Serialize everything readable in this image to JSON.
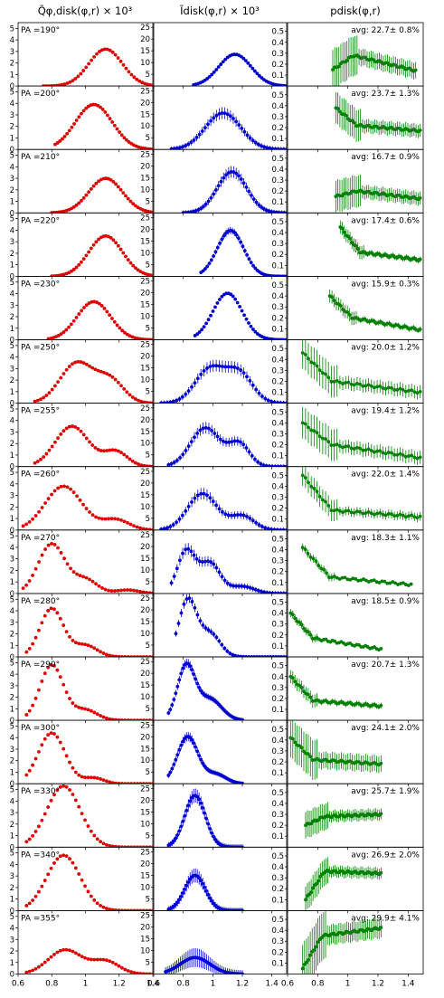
{
  "figure": {
    "columns": [
      {
        "id": "q",
        "title": "Q̃φ,disk(φ,r) × 10³",
        "color": "#e00000",
        "ylim": [
          0,
          5.5
        ],
        "yticks": [
          0,
          1,
          2,
          3,
          4,
          5
        ],
        "ytick_labels": [
          "0",
          "1",
          "2",
          "3",
          "4",
          "5"
        ],
        "xlim": [
          0.6,
          1.4
        ],
        "xticks": [
          0.6,
          0.8,
          1.0,
          1.2,
          1.4
        ],
        "xtick_labels": [
          "0.6",
          "0.8",
          "1",
          "1.2",
          "1.4"
        ]
      },
      {
        "id": "i",
        "title": "Ĩdisk(φ,r) × 10³",
        "color": "#0000d0",
        "ylim": [
          0,
          27
        ],
        "yticks": [
          5,
          10,
          15,
          20,
          25
        ],
        "ytick_labels": [
          "5",
          "10",
          "15",
          "20",
          "25"
        ],
        "xlim": [
          0.6,
          1.5
        ],
        "xticks": [
          0.6,
          0.8,
          1.0,
          1.2,
          1.4
        ],
        "xtick_labels": [
          "0.6",
          "0.8",
          "1",
          "1.2",
          "1.4"
        ]
      },
      {
        "id": "p",
        "title": "pdisk(φ,r)",
        "color": "#008000",
        "ylim": [
          0,
          0.58
        ],
        "yticks": [
          0.1,
          0.2,
          0.3,
          0.4,
          0.5
        ],
        "ytick_labels": [
          "0.1",
          "0.2",
          "0.3",
          "0.4",
          "0.5"
        ],
        "xlim": [
          0.6,
          1.5
        ],
        "xticks": [
          0.6,
          0.8,
          1.0,
          1.2,
          1.4
        ],
        "xtick_labels": [
          "0.6",
          "0.8",
          "1",
          "1.2",
          "1.4"
        ]
      }
    ],
    "rows": [
      {
        "pa": "PA =190°",
        "avg": "avg: 22.7± 0.8%"
      },
      {
        "pa": "PA =200°",
        "avg": "avg: 23.7± 1.3%"
      },
      {
        "pa": "PA =210°",
        "avg": "avg: 16.7± 0.9%"
      },
      {
        "pa": "PA =220°",
        "avg": "avg: 17.4± 0.6%"
      },
      {
        "pa": "PA =230°",
        "avg": "avg: 15.9± 0.3%"
      },
      {
        "pa": "PA =250°",
        "avg": "avg: 20.0± 1.2%"
      },
      {
        "pa": "PA =255°",
        "avg": "avg: 19.4± 1.2%"
      },
      {
        "pa": "PA =260°",
        "avg": "avg: 22.0± 1.4%"
      },
      {
        "pa": "PA =270°",
        "avg": "avg: 18.3± 1.1%"
      },
      {
        "pa": "PA =280°",
        "avg": "avg: 18.5± 0.9%"
      },
      {
        "pa": "PA =290°",
        "avg": "avg: 20.7± 1.3%"
      },
      {
        "pa": "PA =300°",
        "avg": "avg: 24.1± 2.0%"
      },
      {
        "pa": "PA =330°",
        "avg": "avg: 25.7± 1.9%"
      },
      {
        "pa": "PA =340°",
        "avg": "avg: 26.9± 2.0%"
      },
      {
        "pa": "PA =355°",
        "avg": "avg: 29.9± 4.1%"
      }
    ]
  },
  "chart_data": [
    {
      "type": "scatter",
      "panel": "Q-190",
      "x_range": [
        0.75,
        1.4
      ],
      "peaks": [
        {
          "x": 1.12,
          "y": 3.2,
          "w": 0.1
        }
      ]
    },
    {
      "type": "scatter",
      "panel": "Q-200",
      "x_range": [
        0.82,
        1.4
      ],
      "peaks": [
        {
          "x": 1.05,
          "y": 3.9,
          "w": 0.11
        }
      ]
    },
    {
      "type": "scatter",
      "panel": "Q-210",
      "x_range": [
        0.8,
        1.4
      ],
      "peaks": [
        {
          "x": 1.12,
          "y": 3.0,
          "w": 0.1
        }
      ]
    },
    {
      "type": "scatter",
      "panel": "Q-220",
      "x_range": [
        0.8,
        1.4
      ],
      "peaks": [
        {
          "x": 1.12,
          "y": 3.5,
          "w": 0.1
        }
      ]
    },
    {
      "type": "scatter",
      "panel": "Q-230",
      "x_range": [
        0.78,
        1.4
      ],
      "peaks": [
        {
          "x": 1.05,
          "y": 3.3,
          "w": 0.1
        }
      ]
    },
    {
      "type": "scatter",
      "panel": "Q-250",
      "x_range": [
        0.7,
        1.4
      ],
      "peaks": [
        {
          "x": 0.95,
          "y": 3.5,
          "w": 0.1
        },
        {
          "x": 1.15,
          "y": 1.9,
          "w": 0.08
        }
      ]
    },
    {
      "type": "scatter",
      "panel": "Q-255",
      "x_range": [
        0.7,
        1.4
      ],
      "peaks": [
        {
          "x": 0.92,
          "y": 3.5,
          "w": 0.1
        },
        {
          "x": 1.18,
          "y": 1.3,
          "w": 0.07
        }
      ]
    },
    {
      "type": "scatter",
      "panel": "Q-260",
      "x_range": [
        0.63,
        1.4
      ],
      "peaks": [
        {
          "x": 0.87,
          "y": 3.8,
          "w": 0.11
        },
        {
          "x": 1.18,
          "y": 0.9,
          "w": 0.08
        }
      ]
    },
    {
      "type": "scatter",
      "panel": "Q-270",
      "x_range": [
        0.63,
        1.4
      ],
      "peaks": [
        {
          "x": 0.8,
          "y": 4.3,
          "w": 0.08
        },
        {
          "x": 1.0,
          "y": 1.2,
          "w": 0.07
        },
        {
          "x": 1.25,
          "y": 0.3,
          "w": 0.07
        }
      ]
    },
    {
      "type": "scatter",
      "panel": "Q-280",
      "x_range": [
        0.65,
        1.4
      ],
      "peaks": [
        {
          "x": 0.8,
          "y": 4.2,
          "w": 0.07
        },
        {
          "x": 1.0,
          "y": 1.0,
          "w": 0.07
        }
      ]
    },
    {
      "type": "scatter",
      "panel": "Q-290",
      "x_range": [
        0.65,
        1.4
      ],
      "peaks": [
        {
          "x": 0.8,
          "y": 4.8,
          "w": 0.07
        },
        {
          "x": 1.0,
          "y": 0.9,
          "w": 0.07
        }
      ]
    },
    {
      "type": "scatter",
      "panel": "Q-300",
      "x_range": [
        0.65,
        1.4
      ],
      "peaks": [
        {
          "x": 0.8,
          "y": 4.4,
          "w": 0.08
        },
        {
          "x": 1.05,
          "y": 0.5,
          "w": 0.06
        }
      ]
    },
    {
      "type": "scatter",
      "panel": "Q-330",
      "x_range": [
        0.65,
        1.4
      ],
      "peaks": [
        {
          "x": 0.87,
          "y": 5.3,
          "w": 0.1
        }
      ]
    },
    {
      "type": "scatter",
      "panel": "Q-340",
      "x_range": [
        0.65,
        1.4
      ],
      "peaks": [
        {
          "x": 0.87,
          "y": 4.8,
          "w": 0.1
        }
      ]
    },
    {
      "type": "scatter",
      "panel": "Q-355",
      "x_range": [
        0.65,
        1.4
      ],
      "peaks": [
        {
          "x": 0.88,
          "y": 2.1,
          "w": 0.1
        },
        {
          "x": 1.12,
          "y": 1.1,
          "w": 0.08
        }
      ]
    },
    {
      "type": "scatter",
      "panel": "I-190",
      "x_range": [
        0.87,
        1.5
      ],
      "peaks": [
        {
          "x": 1.15,
          "y": 13.5,
          "w": 0.11
        }
      ],
      "err": 0.3
    },
    {
      "type": "scatter",
      "panel": "I-200",
      "x_range": [
        0.72,
        1.5
      ],
      "peaks": [
        {
          "x": 1.07,
          "y": 15.5,
          "w": 0.12
        }
      ],
      "err": 2.5
    },
    {
      "type": "scatter",
      "panel": "I-210",
      "x_range": [
        0.8,
        1.5
      ],
      "peaks": [
        {
          "x": 1.13,
          "y": 17.5,
          "w": 0.1
        }
      ],
      "err": 2.5
    },
    {
      "type": "scatter",
      "panel": "I-220",
      "x_range": [
        0.92,
        1.5
      ],
      "peaks": [
        {
          "x": 1.12,
          "y": 19.5,
          "w": 0.09
        }
      ],
      "err": 1.5
    },
    {
      "type": "scatter",
      "panel": "I-230",
      "x_range": [
        0.88,
        1.5
      ],
      "peaks": [
        {
          "x": 1.1,
          "y": 19.8,
          "w": 0.1
        }
      ],
      "err": 0.3
    },
    {
      "type": "scatter",
      "panel": "I-250",
      "x_range": [
        0.65,
        1.5
      ],
      "peaks": [
        {
          "x": 0.98,
          "y": 14.5,
          "w": 0.1
        },
        {
          "x": 1.18,
          "y": 12.5,
          "w": 0.09
        }
      ],
      "err": 2.5
    },
    {
      "type": "scatter",
      "panel": "I-255",
      "x_range": [
        0.7,
        1.5
      ],
      "peaks": [
        {
          "x": 0.95,
          "y": 16.5,
          "w": 0.1
        },
        {
          "x": 1.18,
          "y": 9.5,
          "w": 0.07
        }
      ],
      "err": 2.5
    },
    {
      "type": "scatter",
      "panel": "I-260",
      "x_range": [
        0.65,
        1.5
      ],
      "peaks": [
        {
          "x": 0.93,
          "y": 15.5,
          "w": 0.1
        },
        {
          "x": 1.2,
          "y": 6,
          "w": 0.08
        }
      ],
      "err": 2.5
    },
    {
      "type": "scatter",
      "panel": "I-270",
      "x_range": [
        0.72,
        1.5
      ],
      "peaks": [
        {
          "x": 0.82,
          "y": 18,
          "w": 0.06
        },
        {
          "x": 0.98,
          "y": 13,
          "w": 0.07
        },
        {
          "x": 1.2,
          "y": 3,
          "w": 0.08
        }
      ],
      "err": 2.5
    },
    {
      "type": "scatter",
      "panel": "I-280",
      "x_range": [
        0.75,
        1.5
      ],
      "peaks": [
        {
          "x": 0.83,
          "y": 24,
          "w": 0.06
        },
        {
          "x": 0.98,
          "y": 10,
          "w": 0.07
        }
      ],
      "err": 2
    },
    {
      "type": "scatter",
      "panel": "I-290",
      "x_range": [
        0.7,
        1.2
      ],
      "peaks": [
        {
          "x": 0.82,
          "y": 23,
          "w": 0.06
        },
        {
          "x": 0.98,
          "y": 9,
          "w": 0.08
        }
      ],
      "err": 2
    },
    {
      "type": "scatter",
      "panel": "I-300",
      "x_range": [
        0.7,
        1.2
      ],
      "peaks": [
        {
          "x": 0.83,
          "y": 20,
          "w": 0.07
        },
        {
          "x": 1.02,
          "y": 4,
          "w": 0.07
        }
      ],
      "err": 2
    },
    {
      "type": "scatter",
      "panel": "I-330",
      "x_range": [
        0.7,
        1.2
      ],
      "peaks": [
        {
          "x": 0.88,
          "y": 22,
          "w": 0.07
        }
      ],
      "err": 3
    },
    {
      "type": "scatter",
      "panel": "I-340",
      "x_range": [
        0.7,
        1.2
      ],
      "peaks": [
        {
          "x": 0.88,
          "y": 15,
          "w": 0.07
        }
      ],
      "err": 3
    },
    {
      "type": "scatter",
      "panel": "I-355",
      "x_range": [
        0.68,
        1.2
      ],
      "peaks": [
        {
          "x": 0.88,
          "y": 7,
          "w": 0.1
        }
      ],
      "err": 4
    },
    {
      "type": "scatter",
      "panel": "p-190",
      "x_range": [
        0.9,
        1.45
      ],
      "y_start": 0.15,
      "y_mid": 0.28,
      "y_end": 0.14,
      "err": 0.15
    },
    {
      "type": "scatter",
      "panel": "p-200",
      "x_range": [
        0.92,
        1.48
      ],
      "y_start": 0.38,
      "y_mid": 0.22,
      "y_end": 0.17,
      "err": 0.12
    },
    {
      "type": "scatter",
      "panel": "p-210",
      "x_range": [
        0.92,
        1.48
      ],
      "y_start": 0.15,
      "y_mid": 0.2,
      "y_end": 0.13,
      "err": 0.12
    },
    {
      "type": "scatter",
      "panel": "p-220",
      "x_range": [
        0.95,
        1.48
      ],
      "y_start": 0.45,
      "y_mid": 0.22,
      "y_end": 0.15,
      "err": 0.05
    },
    {
      "type": "scatter",
      "panel": "p-230",
      "x_range": [
        0.88,
        1.48
      ],
      "y_start": 0.4,
      "y_mid": 0.2,
      "y_end": 0.09,
      "err": 0.05
    },
    {
      "type": "scatter",
      "panel": "p-250",
      "x_range": [
        0.7,
        1.48
      ],
      "y_start": 0.46,
      "y_mid": 0.2,
      "y_end": 0.1,
      "err": 0.12
    },
    {
      "type": "scatter",
      "panel": "p-255",
      "x_range": [
        0.7,
        1.48
      ],
      "y_start": 0.4,
      "y_mid": 0.2,
      "y_end": 0.08,
      "err": 0.12
    },
    {
      "type": "scatter",
      "panel": "p-260",
      "x_range": [
        0.7,
        1.48
      ],
      "y_start": 0.5,
      "y_mid": 0.18,
      "y_end": 0.12,
      "err": 0.08
    },
    {
      "type": "scatter",
      "panel": "p-270",
      "x_range": [
        0.7,
        1.42
      ],
      "y_start": 0.42,
      "y_mid": 0.15,
      "y_end": 0.08,
      "err": 0.03
    },
    {
      "type": "scatter",
      "panel": "p-280",
      "x_range": [
        0.62,
        1.22
      ],
      "y_start": 0.4,
      "y_mid": 0.17,
      "y_end": 0.07,
      "err": 0.03
    },
    {
      "type": "scatter",
      "panel": "p-290",
      "x_range": [
        0.62,
        1.22
      ],
      "y_start": 0.4,
      "y_mid": 0.18,
      "y_end": 0.13,
      "err": 0.05
    },
    {
      "type": "scatter",
      "panel": "p-300",
      "x_range": [
        0.62,
        1.22
      ],
      "y_start": 0.42,
      "y_mid": 0.22,
      "y_end": 0.18,
      "err": 0.15
    },
    {
      "type": "scatter",
      "panel": "p-330",
      "x_range": [
        0.72,
        1.22
      ],
      "y_start": 0.2,
      "y_mid": 0.28,
      "y_end": 0.3,
      "err": 0.1
    },
    {
      "type": "scatter",
      "panel": "p-340",
      "x_range": [
        0.72,
        1.22
      ],
      "y_start": 0.1,
      "y_mid": 0.36,
      "y_end": 0.34,
      "err": 0.1
    },
    {
      "type": "scatter",
      "panel": "p-355",
      "x_range": [
        0.7,
        1.22
      ],
      "y_start": 0.05,
      "y_mid": 0.35,
      "y_end": 0.42,
      "err": 0.18
    }
  ]
}
